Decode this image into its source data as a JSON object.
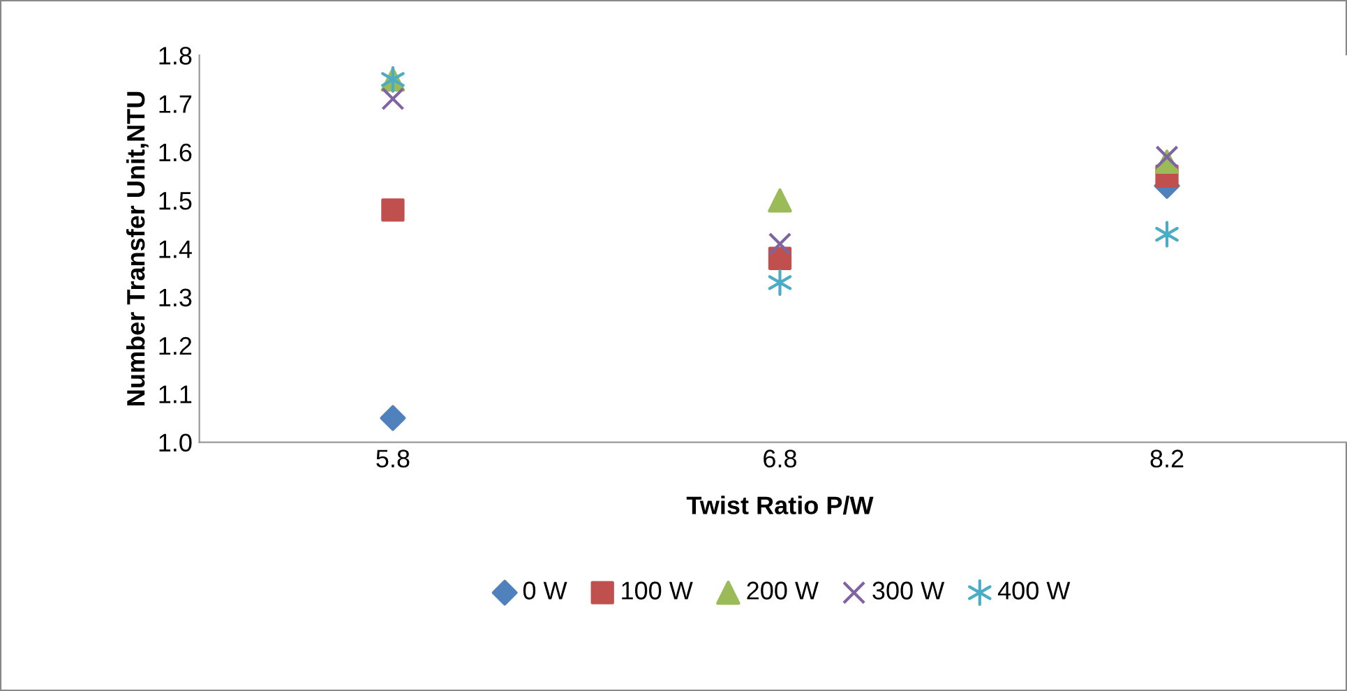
{
  "chart_data": {
    "type": "scatter",
    "xlabel": "Twist Ratio P/W",
    "ylabel": "Number Transfer Unit,NTU",
    "categories": [
      "5.8",
      "6.8",
      "8.2"
    ],
    "series": [
      {
        "name": "0 W",
        "color": "#4f81bd",
        "marker": "diamond",
        "values": [
          1.05,
          null,
          1.53
        ]
      },
      {
        "name": "100 W",
        "color": "#c0504d",
        "marker": "square",
        "values": [
          1.48,
          1.38,
          1.55
        ]
      },
      {
        "name": "200 W",
        "color": "#9bbb59",
        "marker": "triangle",
        "values": [
          1.75,
          1.5,
          1.58
        ]
      },
      {
        "name": "300 W",
        "color": "#8064a2",
        "marker": "cross",
        "values": [
          1.71,
          1.41,
          1.59
        ]
      },
      {
        "name": "400 W",
        "color": "#4bacc6",
        "values": [
          1.75,
          1.33,
          1.43
        ]
      }
    ],
    "ylim": [
      1.0,
      1.8
    ],
    "yticks": [
      {
        "value": 1.0,
        "label": "1.0"
      },
      1.1,
      1.2,
      1.3,
      1.4,
      1.5,
      1.6,
      1.7,
      1.8
    ],
    "grid": false,
    "legend": "bottom"
  }
}
